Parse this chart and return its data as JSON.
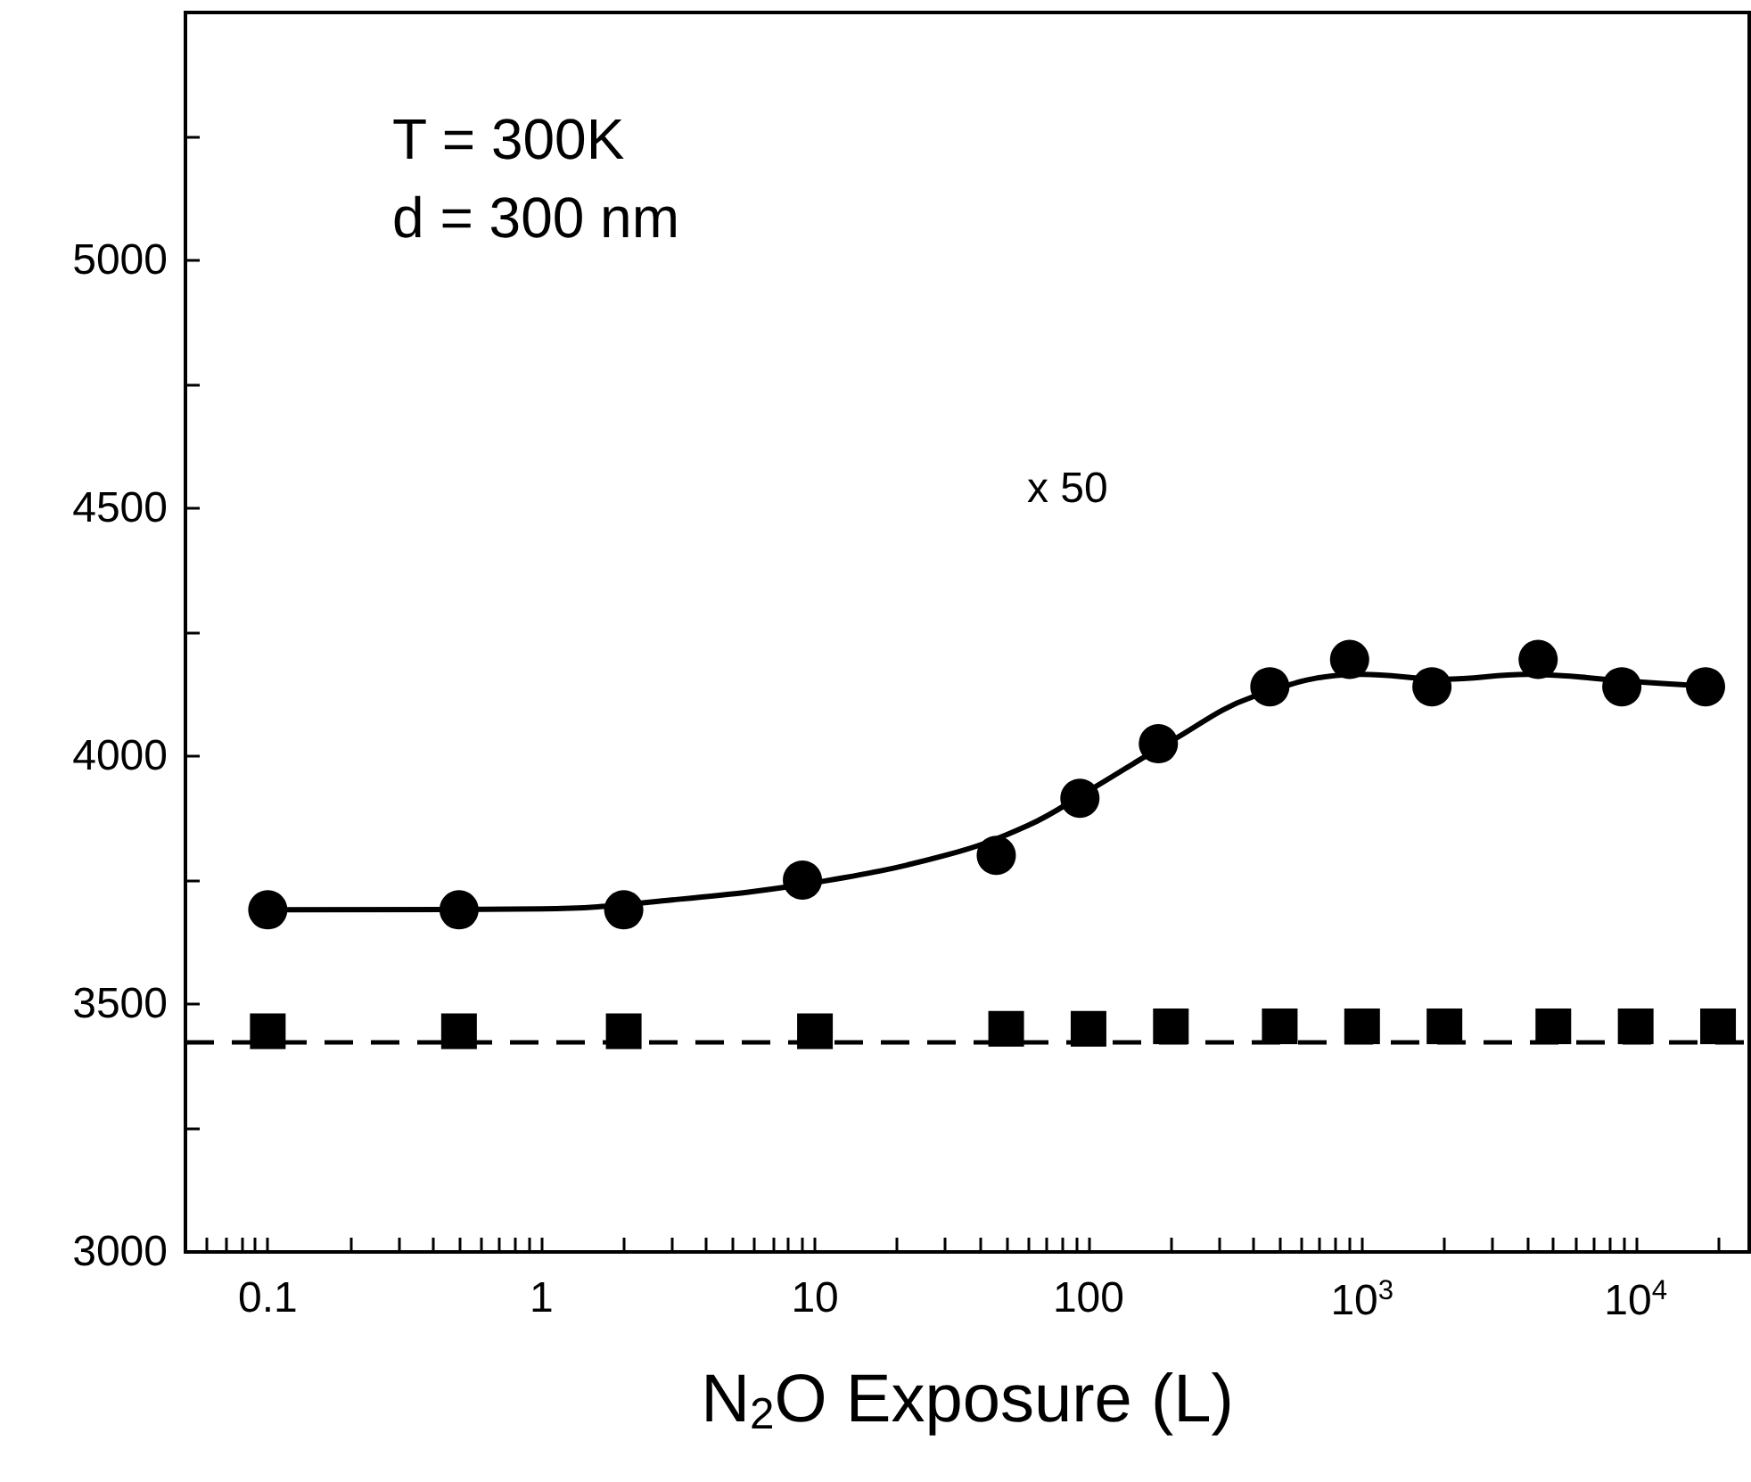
{
  "chart_data": {
    "type": "scatter",
    "xlabel": "N$_{2}$O Exposure (L)",
    "log": "x",
    "xlim": [
      0.05,
      26000
    ],
    "ylim": [
      3000,
      5500
    ],
    "xticks": [
      0.1,
      1,
      10,
      100,
      {
        "value": 1000,
        "label": "10$^{3}$"
      },
      {
        "value": 10000,
        "label": "10$^{4}$"
      },
      {
        "value": 0.05,
        "label": null
      },
      {
        "value": 0.06,
        "label": null
      },
      {
        "value": 0.07,
        "label": null
      },
      {
        "value": 0.08,
        "label": null
      },
      {
        "value": 0.09,
        "label": null
      },
      {
        "value": 0.2,
        "label": null
      },
      {
        "value": 0.3,
        "label": null
      },
      {
        "value": 0.4,
        "label": null
      },
      {
        "value": 0.5,
        "label": null
      },
      {
        "value": 0.6,
        "label": null
      },
      {
        "value": 0.7,
        "label": null
      },
      {
        "value": 0.8,
        "label": null
      },
      {
        "value": 0.9,
        "label": null
      },
      {
        "value": 2,
        "label": null
      },
      {
        "value": 3,
        "label": null
      },
      {
        "value": 4,
        "label": null
      },
      {
        "value": 5,
        "label": null
      },
      {
        "value": 6,
        "label": null
      },
      {
        "value": 7,
        "label": null
      },
      {
        "value": 8,
        "label": null
      },
      {
        "value": 9,
        "label": null
      },
      {
        "value": 20,
        "label": null
      },
      {
        "value": 30,
        "label": null
      },
      {
        "value": 40,
        "label": null
      },
      {
        "value": 50,
        "label": null
      },
      {
        "value": 60,
        "label": null
      },
      {
        "value": 70,
        "label": null
      },
      {
        "value": 80,
        "label": null
      },
      {
        "value": 90,
        "label": null
      },
      {
        "value": 200,
        "label": null
      },
      {
        "value": 300,
        "label": null
      },
      {
        "value": 400,
        "label": null
      },
      {
        "value": 500,
        "label": null
      },
      {
        "value": 600,
        "label": null
      },
      {
        "value": 700,
        "label": null
      },
      {
        "value": 800,
        "label": null
      },
      {
        "value": 900,
        "label": null
      },
      {
        "value": 2000,
        "label": null
      },
      {
        "value": 3000,
        "label": null
      },
      {
        "value": 4000,
        "label": null
      },
      {
        "value": 5000,
        "label": null
      },
      {
        "value": 6000,
        "label": null
      },
      {
        "value": 7000,
        "label": null
      },
      {
        "value": 8000,
        "label": null
      },
      {
        "value": 9000,
        "label": null
      },
      {
        "value": 20000,
        "label": null
      }
    ],
    "yticks": [
      3000,
      3500,
      4000,
      4500,
      5000,
      {
        "value": 3250,
        "label": null
      },
      {
        "value": 3750,
        "label": null
      },
      {
        "value": 4250,
        "label": null
      },
      {
        "value": 4750,
        "label": null
      },
      {
        "value": 5250,
        "label": null
      }
    ],
    "grid": false,
    "series": [
      {
        "marker": "circle",
        "color": "#000000",
        "x": [
          0.1,
          0.5,
          2,
          9,
          46,
          93,
          180,
          460,
          900,
          1800,
          4400,
          8900,
          18000
        ],
        "values": [
          3690,
          3690,
          3690,
          3750,
          3800,
          3915,
          4025,
          4140,
          4195,
          4140,
          4195,
          4140,
          4140
        ]
      },
      {
        "type": "line",
        "marker": "none",
        "line_style": "solid",
        "color": "#000000",
        "x": [
          0.1,
          1,
          3,
          10,
          30,
          60,
          100,
          200,
          400,
          1000,
          2000,
          4000,
          10000,
          20000
        ],
        "values": [
          3690,
          3692,
          3710,
          3745,
          3800,
          3860,
          3930,
          4030,
          4120,
          4165,
          4155,
          4165,
          4150,
          4140
        ]
      },
      {
        "marker": "square",
        "color": "#000000",
        "x": [
          0.1,
          0.5,
          2,
          10,
          50,
          100,
          200,
          500,
          1000,
          2000,
          5000,
          10000,
          20000
        ],
        "values": [
          3445,
          3445,
          3445,
          3445,
          3450,
          3450,
          3455,
          3455,
          3455,
          3455,
          3455,
          3455,
          3455
        ]
      }
    ],
    "ref_lines": [
      {
        "axis": "y",
        "value": 3425,
        "color": "#000000",
        "line_style": "dashed"
      }
    ],
    "annotations": [
      "T = 300K",
      "d = 300 nm",
      "x 50"
    ]
  }
}
